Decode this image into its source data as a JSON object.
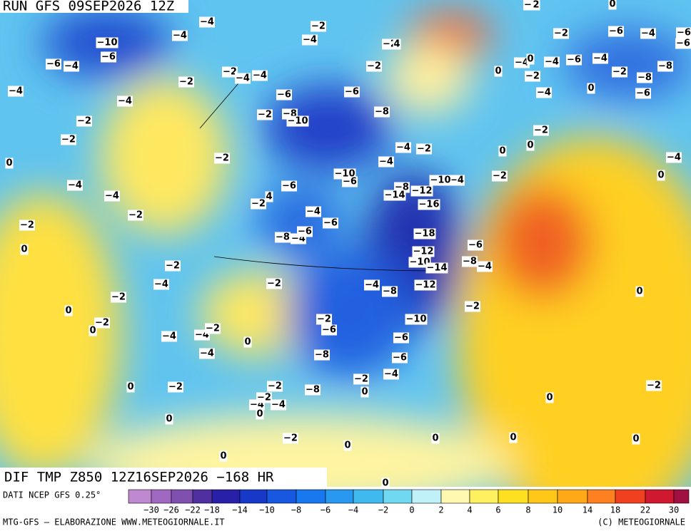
{
  "header": {
    "run": "RUN GFS 09SEP2026 12Z"
  },
  "map": {
    "title": "DIF TMP Z850 12Z16SEP2026 −168 HR",
    "labels": [
      "−10",
      "−4",
      "−4",
      "−2",
      "−4",
      "−6",
      "−4",
      "−6",
      "−4",
      "−4",
      "−2",
      "−2",
      "−4",
      "−4",
      "−2",
      "−2",
      "0",
      "−6",
      "−6",
      "−8",
      "−8",
      "−10",
      "−2",
      "−2",
      "−4",
      "−2",
      "−4",
      "−10",
      "−6",
      "−6",
      "−8",
      "−12",
      "−14",
      "−16",
      "−18",
      "−12",
      "−10",
      "−14",
      "−12",
      "−10",
      "−4",
      "−10",
      "−2",
      "−4",
      "−4",
      "−2",
      "4",
      "−4",
      "−6",
      "−2",
      "−2",
      "0",
      "−8",
      "−4",
      "−6",
      "−2",
      "−4",
      "−2",
      "−2",
      "−4",
      "−8",
      "−6",
      "−8",
      "−4",
      "0",
      "−2",
      "0",
      "−2",
      "−6",
      "−4",
      "−4",
      "−2",
      "0",
      "−6",
      "−4",
      "−8",
      "−6",
      "−2",
      "−4",
      "0",
      "0",
      "−2",
      "−2",
      "−8",
      "−2",
      "0",
      "0",
      "−2",
      "−4",
      "−2",
      "−4",
      "0",
      "0",
      "−2",
      "0",
      "0",
      "0",
      "0",
      "0",
      "0",
      "−2",
      "−6",
      "−4",
      "−6",
      "−6",
      "0",
      "−4",
      "0",
      "−2",
      "−4",
      "−6",
      "−4",
      "−2",
      "−8",
      "−8",
      "−6",
      "0",
      "−4",
      "−2",
      "0",
      "0",
      "−4",
      "0",
      "−2",
      "2",
      "0",
      "−2",
      "−2",
      "4"
    ]
  },
  "legend": {
    "source": "DATI NCEP GFS 0.25°",
    "colors": [
      "#c088d0",
      "#a068c0",
      "#8050b0",
      "#5030a0",
      "#2820a8",
      "#1838c8",
      "#1858e0",
      "#1878f0",
      "#2898f0",
      "#40b8f0",
      "#70d8f0",
      "#c0f0f8",
      "#fff8b0",
      "#fff060",
      "#ffe020",
      "#ffc818",
      "#ffa818",
      "#ff8020",
      "#f04020",
      "#d01830",
      "#a01040"
    ],
    "ticks": [
      "−30",
      "−26",
      "−22",
      "−18",
      "−14",
      "−10",
      "−8",
      "−6",
      "−4",
      "−2",
      "0",
      "2",
      "4",
      "6",
      "8",
      "10",
      "14",
      "18",
      "22",
      "30"
    ]
  },
  "footer": {
    "left": "MTG-GFS — ELABORAZIONE WWW.METEOGIORNALE.IT",
    "right": "(C) METEOGIORNALE"
  }
}
